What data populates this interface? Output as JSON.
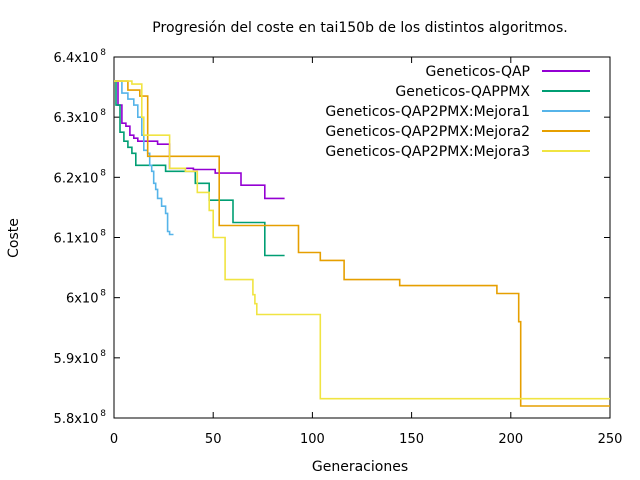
{
  "chart_data": {
    "type": "line",
    "title": "Progresión del coste en tai150b de los distintos algoritmos.",
    "xlabel": "Generaciones",
    "ylabel": "Coste",
    "xlim": [
      0,
      250
    ],
    "ylim": [
      580000000,
      640000000
    ],
    "x_ticks": [
      "0",
      "50",
      "100",
      "150",
      "200",
      "250"
    ],
    "y_ticks": [
      {
        "mantissa": "5.8x10",
        "exp": "8",
        "value": 580000000
      },
      {
        "mantissa": "5.9x10",
        "exp": "8",
        "value": 590000000
      },
      {
        "mantissa": "6x10",
        "exp": "8",
        "value": 600000000
      },
      {
        "mantissa": "6.1x10",
        "exp": "8",
        "value": 610000000
      },
      {
        "mantissa": "6.2x10",
        "exp": "8",
        "value": 620000000
      },
      {
        "mantissa": "6.3x10",
        "exp": "8",
        "value": 630000000
      },
      {
        "mantissa": "6.4x10",
        "exp": "8",
        "value": 640000000
      }
    ],
    "grid": false,
    "legend": "top-right",
    "series": [
      {
        "name": "Geneticos-QAP",
        "color": "#9400d3",
        "points": [
          [
            0,
            636000000
          ],
          [
            2,
            632000000
          ],
          [
            4,
            629000000
          ],
          [
            6,
            628500000
          ],
          [
            8,
            627000000
          ],
          [
            10,
            626500000
          ],
          [
            12,
            626000000
          ],
          [
            20,
            626000000
          ],
          [
            22,
            625500000
          ],
          [
            27,
            625500000
          ],
          [
            28,
            621500000
          ],
          [
            35,
            621500000
          ],
          [
            40,
            621300000
          ],
          [
            50,
            621300000
          ],
          [
            51,
            620700000
          ],
          [
            63,
            620700000
          ],
          [
            64,
            618700000
          ],
          [
            75,
            618700000
          ],
          [
            76,
            616500000
          ],
          [
            86,
            616500000
          ]
        ]
      },
      {
        "name": "Geneticos-QAPPMX",
        "color": "#009e73",
        "points": [
          [
            0,
            636000000
          ],
          [
            1,
            632000000
          ],
          [
            3,
            627500000
          ],
          [
            5,
            626000000
          ],
          [
            7,
            625000000
          ],
          [
            9,
            624000000
          ],
          [
            11,
            622000000
          ],
          [
            25,
            622000000
          ],
          [
            26,
            621000000
          ],
          [
            40,
            621000000
          ],
          [
            41,
            619000000
          ],
          [
            47,
            619000000
          ],
          [
            48,
            616200000
          ],
          [
            59,
            616200000
          ],
          [
            60,
            612500000
          ],
          [
            75,
            612500000
          ],
          [
            76,
            607000000
          ],
          [
            86,
            607000000
          ]
        ]
      },
      {
        "name": "Geneticos-QAP2PMX:Mejora1",
        "color": "#56b4e9",
        "points": [
          [
            0,
            636000000
          ],
          [
            4,
            634000000
          ],
          [
            7,
            633000000
          ],
          [
            9,
            633000000
          ],
          [
            10,
            632000000
          ],
          [
            11,
            632000000
          ],
          [
            12,
            630000000
          ],
          [
            14,
            627000000
          ],
          [
            15,
            624500000
          ],
          [
            16,
            624500000
          ],
          [
            17,
            624000000
          ],
          [
            18,
            622000000
          ],
          [
            19,
            621000000
          ],
          [
            20,
            619000000
          ],
          [
            21,
            618000000
          ],
          [
            22,
            616500000
          ],
          [
            23,
            616500000
          ],
          [
            24,
            615200000
          ],
          [
            25,
            615200000
          ],
          [
            26,
            614000000
          ],
          [
            27,
            611000000
          ],
          [
            28,
            610500000
          ],
          [
            30,
            610500000
          ]
        ]
      },
      {
        "name": "Geneticos-QAP2PMX:Mejora2",
        "color": "#e69f00",
        "points": [
          [
            0,
            636000000
          ],
          [
            6,
            636000000
          ],
          [
            7,
            634500000
          ],
          [
            12,
            634500000
          ],
          [
            13,
            633500000
          ],
          [
            16,
            633500000
          ],
          [
            17,
            623500000
          ],
          [
            52,
            623500000
          ],
          [
            53,
            612000000
          ],
          [
            92,
            612000000
          ],
          [
            93,
            607500000
          ],
          [
            103,
            607500000
          ],
          [
            104,
            606200000
          ],
          [
            115,
            606200000
          ],
          [
            116,
            603000000
          ],
          [
            143,
            603000000
          ],
          [
            144,
            602000000
          ],
          [
            192,
            602000000
          ],
          [
            193,
            600700000
          ],
          [
            203,
            600700000
          ],
          [
            204,
            596000000
          ],
          [
            205,
            582000000
          ],
          [
            250,
            582000000
          ]
        ]
      },
      {
        "name": "Geneticos-QAP2PMX:Mejora3",
        "color": "#f0e442",
        "points": [
          [
            0,
            636000000
          ],
          [
            8,
            636000000
          ],
          [
            9,
            635500000
          ],
          [
            13,
            635500000
          ],
          [
            14,
            630000000
          ],
          [
            15,
            627000000
          ],
          [
            27,
            627000000
          ],
          [
            28,
            621500000
          ],
          [
            35,
            621500000
          ],
          [
            36,
            621000000
          ],
          [
            41,
            621000000
          ],
          [
            42,
            617500000
          ],
          [
            47,
            617500000
          ],
          [
            48,
            614500000
          ],
          [
            49,
            614500000
          ],
          [
            50,
            610000000
          ],
          [
            55,
            610000000
          ],
          [
            56,
            603000000
          ],
          [
            69,
            603000000
          ],
          [
            70,
            600500000
          ],
          [
            71,
            599000000
          ],
          [
            72,
            597200000
          ],
          [
            103,
            597200000
          ],
          [
            104,
            583200000
          ],
          [
            250,
            583200000
          ]
        ]
      }
    ]
  }
}
